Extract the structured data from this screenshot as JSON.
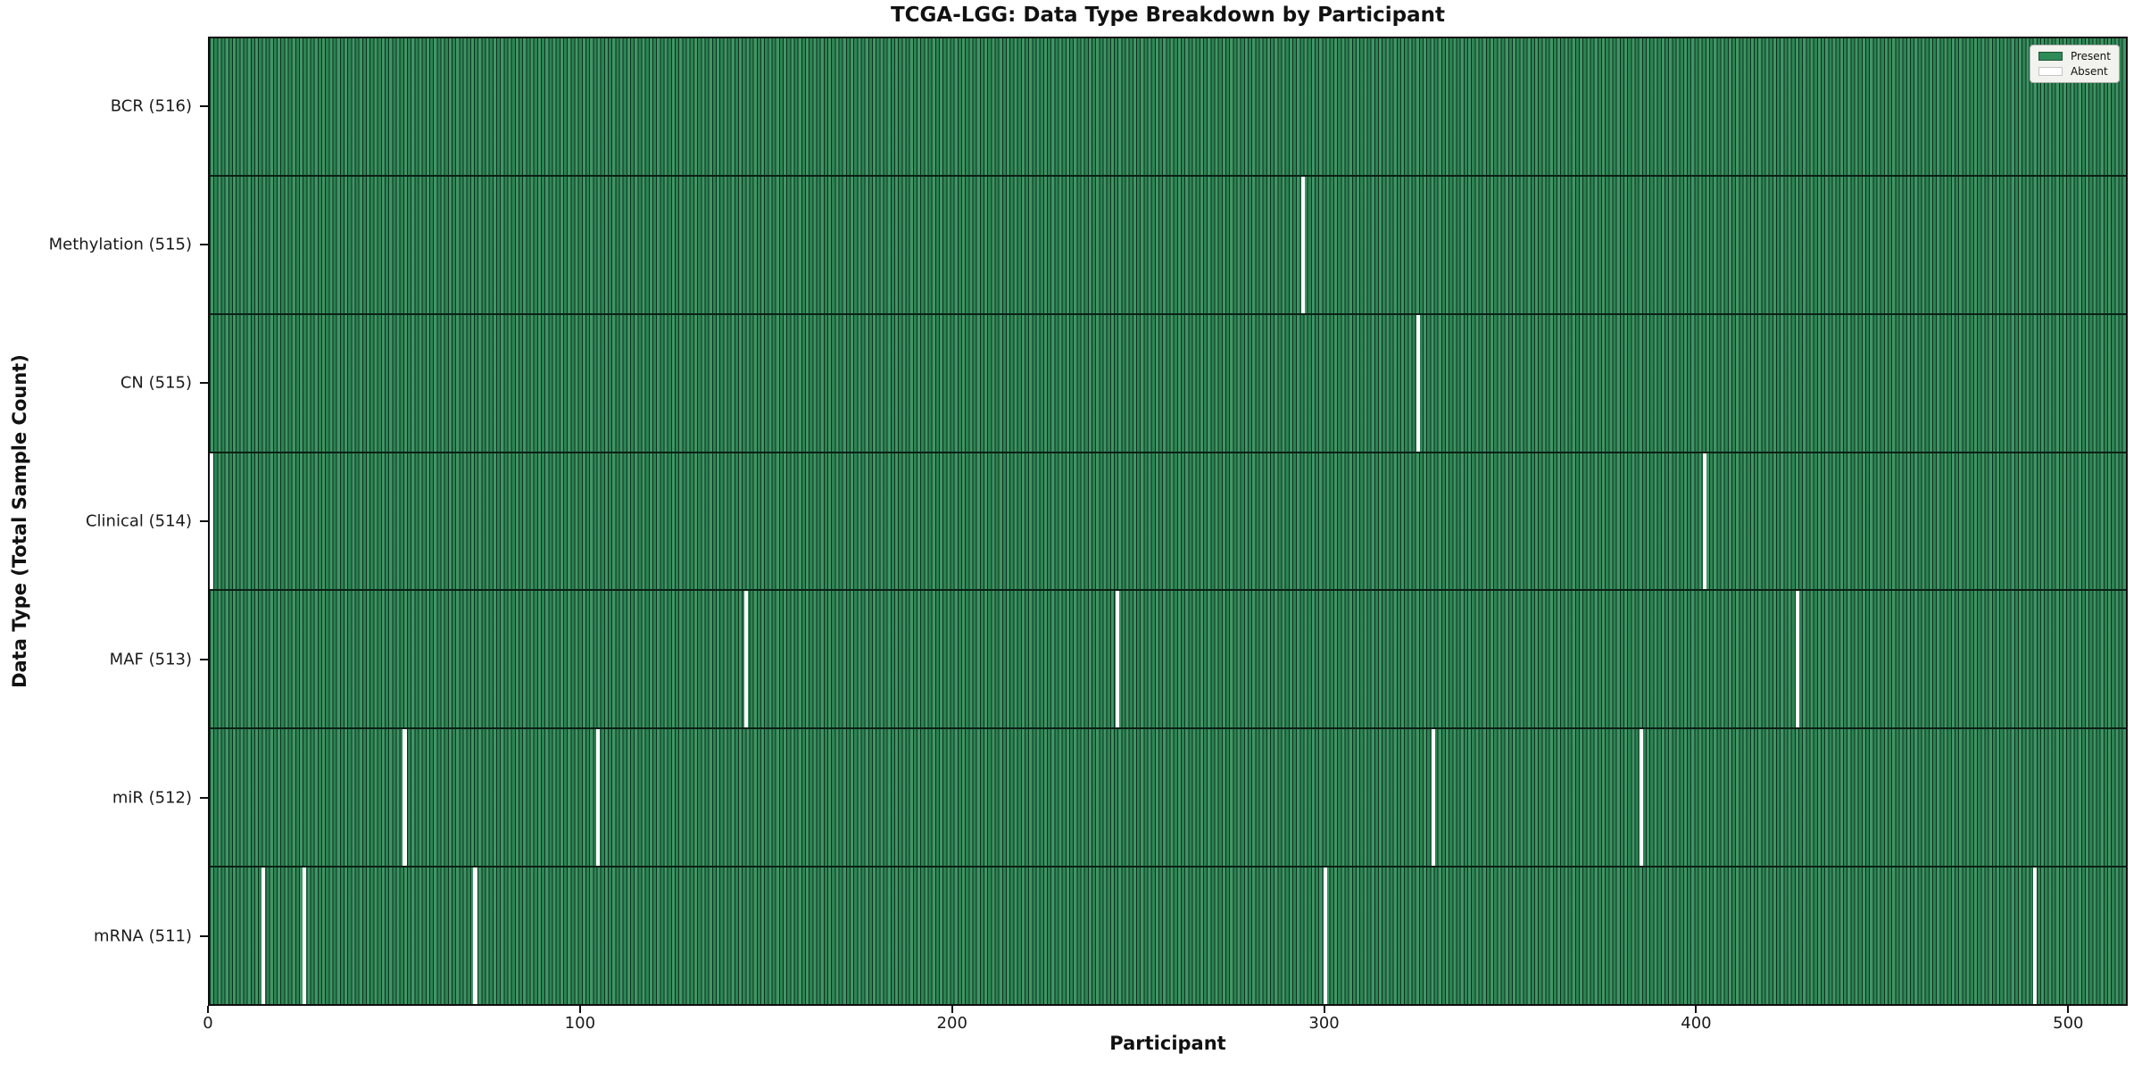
{
  "colors": {
    "present": "#2e8b57",
    "absent": "#ffffff",
    "cell_edge": "#082014",
    "spine": "#0f0f0f",
    "legend_bg": "#f2f2ee"
  },
  "chart_data": {
    "type": "heatmap",
    "title": "TCGA-LGG: Data Type Breakdown by Participant",
    "xlabel": "Participant",
    "ylabel": "Data Type (Total Sample Count)",
    "x_ticks": [
      0,
      100,
      200,
      300,
      400,
      500
    ],
    "x_range": [
      0,
      516
    ],
    "total_participants": 516,
    "grid": false,
    "legend_position": "upper right",
    "legend": {
      "present": "Present",
      "absent": "Absent"
    },
    "rows": [
      {
        "data_type": "bcr",
        "label": "BCR (516)",
        "present_count": 516,
        "absent_count": 0,
        "absent_participants": []
      },
      {
        "data_type": "methylation",
        "label": "Methylation (515)",
        "present_count": 515,
        "absent_count": 1,
        "absent_participants": [
          294
        ]
      },
      {
        "data_type": "cn",
        "label": "CN (515)",
        "present_count": 515,
        "absent_count": 1,
        "absent_participants": [
          325
        ]
      },
      {
        "data_type": "clinical",
        "label": "Clinical (514)",
        "present_count": 514,
        "absent_count": 2,
        "absent_participants": [
          0,
          402
        ]
      },
      {
        "data_type": "maf",
        "label": "MAF (513)",
        "present_count": 513,
        "absent_count": 3,
        "absent_participants": [
          144,
          244,
          427
        ]
      },
      {
        "data_type": "mir",
        "label": "miR (512)",
        "present_count": 512,
        "absent_count": 4,
        "absent_participants": [
          52,
          104,
          329,
          385
        ]
      },
      {
        "data_type": "mrna",
        "label": "mRNA (511)",
        "present_count": 511,
        "absent_count": 5,
        "absent_participants": [
          14,
          25,
          71,
          300,
          491
        ]
      }
    ]
  }
}
